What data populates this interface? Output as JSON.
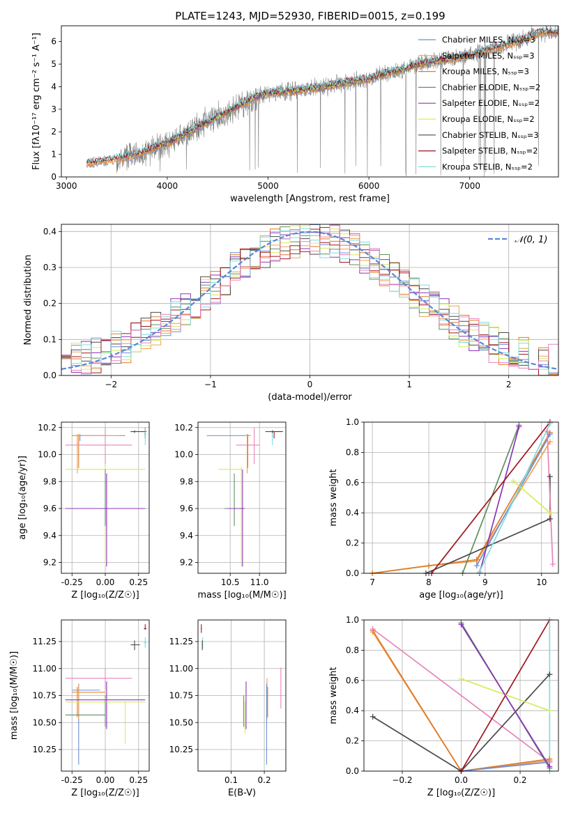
{
  "figure_title": "PLATE=1243, MJD=52930, FIBERID=0015, z=0.199",
  "colors": {
    "Chabrier MILES": "#6b8fd6",
    "Salpeter MILES": "#f0a050",
    "Kroupa MILES": "#e07a25",
    "Chabrier ELODIE": "#5f8f60",
    "Salpeter ELODIE": "#8b35b5",
    "Kroupa ELODIE": "#d4ec5a",
    "Chabrier STELIB": "#4a4a4a",
    "Salpeter STELIB": "#a0141e",
    "Kroupa STELIB": "#7fdce0",
    "Pink": "#e883b8",
    "data_spectrum": "#808080",
    "gaussian": "#5b86d8"
  },
  "chart_data": [
    {
      "id": "spectrum",
      "type": "line",
      "xlabel": "wavelength [Angstrom, rest frame]",
      "ylabel": "Flux [f_λ10^-17 erg cm^-2 s^-1 A^-1]",
      "xlim": [
        2950,
        7880
      ],
      "ylim": [
        0,
        6.7
      ],
      "xticks": [
        3000,
        4000,
        5000,
        6000,
        7000
      ],
      "yticks": [
        0,
        1,
        2,
        3,
        4,
        5,
        6
      ],
      "grid": false,
      "legend_position": "top-right",
      "continuum": {
        "x": [
          3200,
          3500,
          3700,
          4000,
          4300,
          4600,
          4850,
          5000,
          5500,
          6000,
          6500,
          7000,
          7500,
          7700
        ],
        "y": [
          0.6,
          0.8,
          1.0,
          1.5,
          2.2,
          2.9,
          3.5,
          3.7,
          3.95,
          4.35,
          5.0,
          5.4,
          6.05,
          6.4
        ]
      },
      "series": [
        {
          "name": "Chabrier MILES, N_SSP=3"
        },
        {
          "name": "Salpeter MILES, N_SSP=3"
        },
        {
          "name": "Kroupa MILES, N_SSP=3"
        },
        {
          "name": "Chabrier ELODIE, N_SSP=2"
        },
        {
          "name": "Salpeter ELODIE, N_SSP=2"
        },
        {
          "name": "Kroupa ELODIE, N_SSP=2"
        },
        {
          "name": "Chabrier STELIB, N_SSP=3"
        },
        {
          "name": "Salpeter STELIB, N_SSP=2"
        },
        {
          "name": "Kroupa STELIB, N_SSP=2"
        }
      ]
    },
    {
      "id": "residuals",
      "type": "line",
      "xlabel": "(data-model)/error",
      "ylabel": "Normed distribution",
      "xlim": [
        -2.5,
        2.5
      ],
      "ylim": [
        0,
        0.42
      ],
      "xticks": [
        -2,
        -1,
        0,
        1,
        2
      ],
      "yticks": [
        0.0,
        0.1,
        0.2,
        0.3,
        0.4
      ],
      "grid": true,
      "legend_position": "top-right",
      "legend_label": "N(0,1)",
      "gaussian": {
        "mu": 0,
        "sigma": 1
      }
    },
    {
      "id": "age_vs_Z",
      "type": "scatter",
      "xlabel": "Z [log10(Z/Z⊙)]",
      "ylabel": "age  [log10(age/yr)]",
      "xlim": [
        -0.33,
        0.33
      ],
      "ylim": [
        9.12,
        10.24
      ],
      "xticks": [
        -0.25,
        0.0,
        0.25
      ],
      "xticklabels": [
        "-0.25",
        "0.00",
        "0.25"
      ],
      "yticks": [
        9.2,
        9.4,
        9.6,
        9.8,
        10.0,
        10.2
      ],
      "grid": true,
      "points": [
        {
          "c": "Chabrier STELIB",
          "x": 0.22,
          "y": 10.17,
          "xe": [
            0.19,
            0.3
          ],
          "ye": [
            10.16,
            10.18
          ]
        },
        {
          "c": "Salpeter STELIB",
          "x": 0.3,
          "y": 10.17,
          "xe": [
            0.29,
            0.31
          ],
          "ye": [
            10.12,
            10.2
          ]
        },
        {
          "c": "Kroupa STELIB",
          "x": 0.3,
          "y": 10.15,
          "xe": [
            0.29,
            0.31
          ],
          "ye": [
            10.07,
            10.2
          ]
        },
        {
          "c": "Chabrier MILES",
          "x": -0.19,
          "y": 10.14,
          "xe": [
            -0.25,
            -0.0
          ],
          "ye": [
            10.1,
            10.15
          ]
        },
        {
          "c": "Kroupa MILES",
          "x": -0.2,
          "y": 10.14,
          "xe": [
            -0.25,
            0.15
          ],
          "ye": [
            9.9,
            10.15
          ]
        },
        {
          "c": "Salpeter MILES",
          "x": -0.21,
          "y": 10.14,
          "xe": [
            -0.25,
            0.1
          ],
          "ye": [
            9.86,
            10.15
          ]
        },
        {
          "c": "Pink",
          "x": 0.0,
          "y": 10.07,
          "xe": [
            -0.3,
            0.2
          ],
          "ye": [
            9.93,
            10.2
          ]
        },
        {
          "c": "Kroupa ELODIE",
          "x": 0.0,
          "y": 9.89,
          "xe": [
            -0.3,
            0.3
          ],
          "ye": [
            9.17,
            9.91
          ]
        },
        {
          "c": "Chabrier ELODIE",
          "x": 0.0,
          "y": 9.6,
          "xe": [
            -0.3,
            0.3
          ],
          "ye": [
            9.47,
            9.89
          ]
        },
        {
          "c": "Salpeter ELODIE",
          "x": 0.01,
          "y": 9.6,
          "xe": [
            -0.3,
            0.3
          ],
          "ye": [
            9.17,
            9.86
          ]
        }
      ]
    },
    {
      "id": "age_vs_mass",
      "type": "scatter",
      "xlabel": "mass [log10(M/M⊙)]",
      "ylabel": "",
      "xlim": [
        9.95,
        11.45
      ],
      "ylim": [
        9.12,
        10.24
      ],
      "xticks": [
        10.5,
        11.0
      ],
      "xticklabels": [
        "10.5",
        "11.0"
      ],
      "yticks": [
        9.2,
        9.4,
        9.6,
        9.8,
        10.0,
        10.2
      ],
      "grid": true,
      "points": [
        {
          "c": "Salpeter STELIB",
          "x": 11.25,
          "y": 10.17,
          "xe": [
            11.2,
            11.4
          ],
          "ye": [
            10.12,
            10.17
          ]
        },
        {
          "c": "Kroupa STELIB",
          "x": 11.22,
          "y": 10.14,
          "xe": [
            11.21,
            11.25
          ],
          "ye": [
            10.07,
            10.17
          ]
        },
        {
          "c": "Chabrier MILES",
          "x": 10.8,
          "y": 10.14,
          "xe": [
            10.1,
            10.85
          ],
          "ye": [
            10.1,
            10.15
          ]
        },
        {
          "c": "Pink",
          "x": 10.91,
          "y": 10.07,
          "xe": [
            10.6,
            11.0
          ],
          "ye": [
            9.93,
            10.2
          ]
        },
        {
          "c": "Kroupa MILES",
          "x": 10.8,
          "y": 10.14,
          "xe": [
            10.75,
            10.85
          ],
          "ye": [
            9.9,
            10.15
          ]
        },
        {
          "c": "Salpeter MILES",
          "x": 10.79,
          "y": 10.14,
          "xe": [
            10.75,
            10.85
          ],
          "ye": [
            9.86,
            10.15
          ]
        },
        {
          "c": "Chabrier STELIB",
          "x": 11.22,
          "y": 10.17,
          "xe": [
            11.1,
            11.25
          ],
          "ye": [
            10.16,
            10.18
          ]
        },
        {
          "c": "Kroupa ELODIE",
          "x": 10.69,
          "y": 9.89,
          "xe": [
            10.3,
            10.7
          ],
          "ye": [
            9.17,
            9.91
          ]
        },
        {
          "c": "Chabrier ELODIE",
          "x": 10.57,
          "y": 9.6,
          "xe": [
            10.4,
            10.75
          ],
          "ye": [
            9.47,
            9.86
          ]
        },
        {
          "c": "Salpeter ELODIE",
          "x": 10.71,
          "y": 9.6,
          "xe": [
            10.45,
            10.75
          ],
          "ye": [
            9.17,
            9.89
          ]
        }
      ]
    },
    {
      "id": "weight_vs_age",
      "type": "line",
      "xlabel": "age  [log10(age/yr)]",
      "ylabel": "mass weight",
      "xlim": [
        6.85,
        10.3
      ],
      "ylim": [
        0,
        1
      ],
      "xticks": [
        7,
        8,
        9,
        10
      ],
      "yticks": [
        0.0,
        0.2,
        0.4,
        0.6,
        0.8,
        1.0
      ],
      "grid": true,
      "lines": [
        {
          "c": "Salpeter MILES",
          "x": [
            7.0,
            8.0,
            8.85,
            10.15
          ],
          "y": [
            0.0,
            0.05,
            0.08,
            0.87
          ]
        },
        {
          "c": "Kroupa MILES",
          "x": [
            7.0,
            8.0,
            8.85,
            10.15
          ],
          "y": [
            0.0,
            0.05,
            0.09,
            0.93
          ]
        },
        {
          "c": "Chabrier MILES",
          "x": [
            8.85,
            10.15
          ],
          "y": [
            0.05,
            0.92
          ]
        },
        {
          "c": "Chabrier ELODIE",
          "x": [
            8.6,
            9.6
          ],
          "y": [
            0.0,
            0.98
          ]
        },
        {
          "c": "Salpeter ELODIE",
          "x": [
            8.9,
            9.6
          ],
          "y": [
            0.0,
            0.97
          ]
        },
        {
          "c": "Kroupa ELODIE",
          "x": [
            9.5,
            10.15
          ],
          "y": [
            0.61,
            0.4
          ]
        },
        {
          "c": "Chabrier STELIB",
          "x": [
            7.95,
            10.15,
            10.15
          ],
          "y": [
            0.0,
            0.36,
            0.64
          ]
        },
        {
          "c": "Salpeter STELIB",
          "x": [
            8.05,
            10.15
          ],
          "y": [
            0.0,
            1.0
          ]
        },
        {
          "c": "Kroupa STELIB",
          "x": [
            8.9,
            10.15
          ],
          "y": [
            0.01,
            0.99
          ]
        },
        {
          "c": "Pink",
          "x": [
            10.1,
            10.2
          ],
          "y": [
            0.94,
            0.06
          ]
        }
      ]
    },
    {
      "id": "mass_vs_Z",
      "type": "scatter",
      "xlabel": "Z [log10(Z/Z⊙)]",
      "ylabel": "mass [log10(M/M⊙)]",
      "xlim": [
        -0.33,
        0.33
      ],
      "ylim": [
        10.05,
        11.45
      ],
      "xticks": [
        -0.25,
        0.0,
        0.25
      ],
      "xticklabels": [
        "-0.25",
        "0.00",
        "0.25"
      ],
      "yticks": [
        10.25,
        10.5,
        10.75,
        11.0,
        11.25
      ],
      "yticklabels": [
        "10.25",
        "10.50",
        "10.75",
        "11.00",
        "11.25"
      ],
      "grid": true,
      "points": [
        {
          "c": "Salpeter STELIB",
          "x": 0.3,
          "y": 11.37,
          "xe": [
            0.29,
            0.31
          ],
          "ye": [
            11.36,
            11.41
          ]
        },
        {
          "c": "Chabrier STELIB",
          "x": 0.22,
          "y": 11.22,
          "xe": [
            0.19,
            0.26
          ],
          "ye": [
            11.17,
            11.26
          ]
        },
        {
          "c": "Kroupa STELIB",
          "x": 0.3,
          "y": 11.24,
          "xe": [
            0.29,
            0.31
          ],
          "ye": [
            11.19,
            11.29
          ]
        },
        {
          "c": "Pink",
          "x": 0.0,
          "y": 10.91,
          "xe": [
            -0.3,
            0.2
          ],
          "ye": [
            10.8,
            11.0
          ]
        },
        {
          "c": "Chabrier MILES",
          "x": -0.2,
          "y": 10.8,
          "xe": [
            -0.25,
            -0.04
          ],
          "ye": [
            10.11,
            10.86
          ]
        },
        {
          "c": "Kroupa MILES",
          "x": -0.21,
          "y": 10.78,
          "xe": [
            -0.25,
            0.0
          ],
          "ye": [
            10.55,
            10.83
          ]
        },
        {
          "c": "Salpeter MILES",
          "x": -0.2,
          "y": 10.78,
          "xe": [
            -0.25,
            0.0
          ],
          "ye": [
            10.53,
            10.86
          ]
        },
        {
          "c": "Salpeter ELODIE",
          "x": 0.01,
          "y": 10.71,
          "xe": [
            -0.3,
            0.3
          ],
          "ye": [
            10.44,
            10.88
          ]
        },
        {
          "c": "Kroupa ELODIE",
          "x": 0.15,
          "y": 10.69,
          "xe": [
            -0.3,
            0.3
          ],
          "ye": [
            10.3,
            10.7
          ]
        },
        {
          "c": "Chabrier ELODIE",
          "x": 0.0,
          "y": 10.57,
          "xe": [
            -0.3,
            0.0
          ],
          "ye": [
            10.46,
            10.75
          ]
        }
      ]
    },
    {
      "id": "mass_vs_EBV",
      "type": "scatter",
      "xlabel": "E(B-V)",
      "ylabel": "",
      "xlim": [
        0.0,
        0.265
      ],
      "ylim": [
        10.05,
        11.45
      ],
      "xticks": [
        0.1,
        0.2
      ],
      "xticklabels": [
        "0.1",
        "0.2"
      ],
      "yticks": [
        10.25,
        10.5,
        10.75,
        11.0,
        11.25
      ],
      "yticklabels": [
        "10.25",
        "10.50",
        "10.75",
        "11.00",
        "11.25"
      ],
      "grid": true,
      "points": [
        {
          "c": "Salpeter STELIB",
          "x": 0.01,
          "y": 11.37,
          "xe": [
            0.01,
            0.012
          ],
          "ye": [
            11.33,
            11.41
          ]
        },
        {
          "c": "Kroupa STELIB",
          "x": 0.014,
          "y": 11.24,
          "xe": [
            0.013,
            0.015
          ],
          "ye": [
            11.19,
            11.29
          ]
        },
        {
          "c": "Chabrier STELIB",
          "x": 0.013,
          "y": 11.22,
          "xe": [
            0.012,
            0.014
          ],
          "ye": [
            11.17,
            11.26
          ]
        },
        {
          "c": "Pink",
          "x": 0.25,
          "y": 10.91,
          "xe": [
            0.249,
            0.251
          ],
          "ye": [
            10.63,
            11.01
          ]
        },
        {
          "c": "Salpeter ELODIE",
          "x": 0.145,
          "y": 10.71,
          "xe": [
            0.144,
            0.146
          ],
          "ye": [
            10.44,
            10.88
          ]
        },
        {
          "c": "Chabrier ELODIE",
          "x": 0.138,
          "y": 10.57,
          "xe": [
            0.137,
            0.139
          ],
          "ye": [
            10.46,
            10.75
          ]
        },
        {
          "c": "Kroupa ELODIE",
          "x": 0.142,
          "y": 10.69,
          "xe": [
            0.141,
            0.143
          ],
          "ye": [
            10.4,
            10.7
          ]
        },
        {
          "c": "Salpeter MILES",
          "x": 0.208,
          "y": 10.78,
          "xe": [
            0.207,
            0.209
          ],
          "ye": [
            10.53,
            10.91
          ]
        },
        {
          "c": "Kroupa MILES",
          "x": 0.21,
          "y": 10.78,
          "xe": [
            0.209,
            0.211
          ],
          "ye": [
            10.55,
            10.83
          ]
        },
        {
          "c": "Chabrier MILES",
          "x": 0.207,
          "y": 10.8,
          "xe": [
            0.206,
            0.208
          ],
          "ye": [
            10.11,
            10.86
          ]
        }
      ]
    },
    {
      "id": "weight_vs_Z",
      "type": "line",
      "xlabel": "Z [log10(Z/Z⊙)]",
      "ylabel": "mass weight",
      "xlim": [
        -0.33,
        0.33
      ],
      "ylim": [
        0,
        1
      ],
      "xticks": [
        -0.2,
        0.0,
        0.2
      ],
      "xticklabels": [
        "−0.2",
        "0.0",
        "0.2"
      ],
      "yticks": [
        0.0,
        0.2,
        0.4,
        0.6,
        0.8,
        1.0
      ],
      "grid": true,
      "lines": [
        {
          "c": "Salpeter MILES",
          "x": [
            -0.3,
            0.0,
            0.3
          ],
          "y": [
            0.92,
            0.0,
            0.07
          ]
        },
        {
          "c": "Kroupa MILES",
          "x": [
            -0.3,
            0.0,
            0.3
          ],
          "y": [
            0.93,
            0.0,
            0.08
          ]
        },
        {
          "c": "Chabrier MILES",
          "x": [
            0.0,
            0.3
          ],
          "y": [
            0.0,
            0.06
          ]
        },
        {
          "c": "Pink",
          "x": [
            -0.3,
            0.3
          ],
          "y": [
            0.94,
            0.06
          ]
        },
        {
          "c": "Chabrier STELIB",
          "x": [
            -0.3,
            0.0,
            0.3,
            0.3
          ],
          "y": [
            0.36,
            0.0,
            0.64,
            0.64
          ]
        },
        {
          "c": "Salpeter STELIB",
          "x": [
            0.0,
            0.3
          ],
          "y": [
            0.0,
            1.0
          ]
        },
        {
          "c": "Kroupa STELIB",
          "x": [
            0.3,
            0.3
          ],
          "y": [
            0.0,
            1.0
          ]
        },
        {
          "c": "Kroupa ELODIE",
          "x": [
            0.0,
            0.3
          ],
          "y": [
            0.61,
            0.4
          ]
        },
        {
          "c": "Chabrier ELODIE",
          "x": [
            0.0,
            0.3
          ],
          "y": [
            0.98,
            0.02
          ]
        },
        {
          "c": "Salpeter ELODIE",
          "x": [
            0.0,
            0.3
          ],
          "y": [
            0.97,
            0.03
          ]
        }
      ]
    }
  ]
}
